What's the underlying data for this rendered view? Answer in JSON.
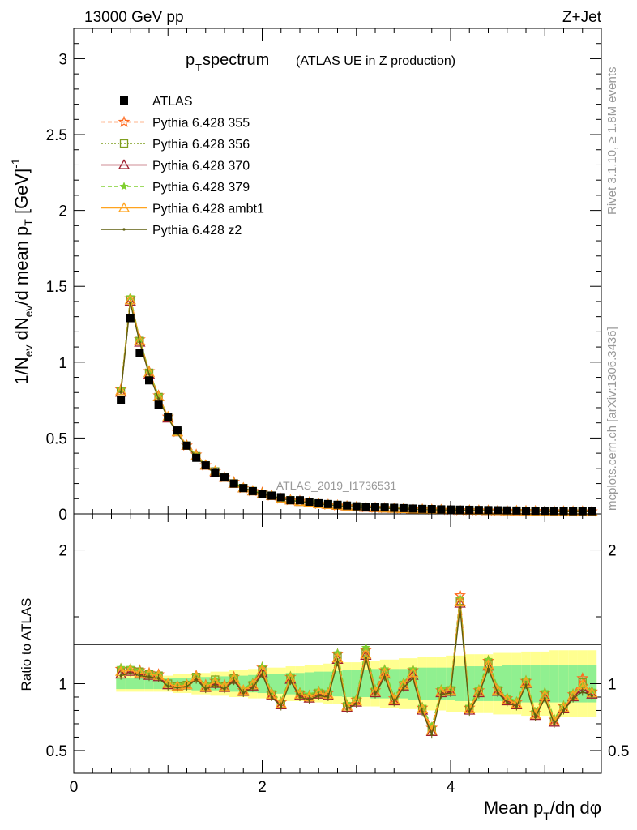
{
  "header": {
    "energy": "13000 GeV pp",
    "process": "Z+Jet",
    "title_main": "p",
    "title_sub": "T",
    "title_rest": " spectrum",
    "title_paren": "(ATLAS UE in Z production)",
    "analysis_tag": "ATLAS_2019_I1736531",
    "side_rivet": "Rivet 3.1.10, ≥ 1.8M events",
    "side_mcplots": "mcplots.cern.ch [arXiv:1306.3436]"
  },
  "colors": {
    "atlas": "#000000",
    "p355": "#ff6a1f",
    "p356": "#7f9f1f",
    "p370": "#9f1f2f",
    "p379": "#7fcf2f",
    "ambt1": "#ffa31f",
    "z2": "#5f5f0f",
    "band_green": "#90f090",
    "band_yellow": "#ffff90"
  },
  "chart_data": [
    {
      "type": "line",
      "panel": "main",
      "ylabel": "1/N_ev dN_ev/d mean p_T [GeV]^-1",
      "xlim": [
        0,
        5.6
      ],
      "ylim": [
        0,
        3.2
      ],
      "yticks": [
        "0",
        "0.5",
        "1",
        "1.5",
        "2",
        "2.5",
        "3"
      ],
      "x": [
        0.5,
        0.6,
        0.7,
        0.8,
        0.9,
        1.0,
        1.1,
        1.2,
        1.3,
        1.4,
        1.5,
        1.6,
        1.7,
        1.8,
        1.9,
        2.0,
        2.1,
        2.2,
        2.3,
        2.4,
        2.5,
        2.6,
        2.7,
        2.8,
        2.9,
        3.0,
        3.1,
        3.2,
        3.3,
        3.4,
        3.5,
        3.6,
        3.7,
        3.8,
        3.9,
        4.0,
        4.1,
        4.2,
        4.3,
        4.4,
        4.5,
        4.6,
        4.7,
        4.8,
        4.9,
        5.0,
        5.1,
        5.2,
        5.3,
        5.4,
        5.5
      ],
      "legend": [
        "ATLAS",
        "Pythia 6.428 355",
        "Pythia 6.428 356",
        "Pythia 6.428 370",
        "Pythia 6.428 379",
        "Pythia 6.428 ambt1",
        "Pythia 6.428 z2"
      ],
      "series": [
        {
          "name": "ATLAS",
          "values": [
            0.75,
            1.29,
            1.06,
            0.88,
            0.72,
            0.64,
            0.55,
            0.45,
            0.37,
            0.32,
            0.27,
            0.24,
            0.2,
            0.17,
            0.15,
            0.13,
            0.12,
            0.11,
            0.09,
            0.09,
            0.08,
            0.07,
            0.065,
            0.06,
            0.055,
            0.05,
            0.048,
            0.045,
            0.042,
            0.04,
            0.038,
            0.035,
            0.033,
            0.032,
            0.03,
            0.029,
            0.028,
            0.027,
            0.026,
            0.025,
            0.024,
            0.023,
            0.022,
            0.021,
            0.02,
            0.02,
            0.019,
            0.019,
            0.018,
            0.018,
            0.018
          ]
        },
        {
          "name": "Pythia 6.428 355",
          "values": [
            0.82,
            1.42,
            1.15,
            0.94,
            0.78,
            0.64,
            0.54,
            0.45,
            0.39,
            0.32,
            0.28,
            0.24,
            0.21,
            0.17,
            0.15,
            0.14,
            0.12,
            0.1,
            0.09,
            0.085,
            0.075,
            0.065,
            0.06,
            0.055,
            0.05,
            0.045,
            0.043,
            0.04,
            0.038,
            0.035,
            0.033,
            0.031,
            0.029,
            0.028,
            0.026,
            0.025,
            0.024,
            0.023,
            0.022,
            0.021,
            0.02,
            0.02,
            0.019,
            0.018,
            0.018,
            0.017,
            0.017,
            0.016,
            0.016,
            0.016,
            0.016
          ]
        },
        {
          "name": "Pythia 6.428 356",
          "values": [
            0.81,
            1.41,
            1.14,
            0.93,
            0.77,
            0.64,
            0.54,
            0.45,
            0.38,
            0.32,
            0.28,
            0.24,
            0.2,
            0.17,
            0.15,
            0.13,
            0.12,
            0.1,
            0.09,
            0.08,
            0.075,
            0.065,
            0.06,
            0.055,
            0.05,
            0.045,
            0.043,
            0.04,
            0.037,
            0.035,
            0.033,
            0.031,
            0.029,
            0.027,
            0.026,
            0.025,
            0.024,
            0.023,
            0.022,
            0.021,
            0.02,
            0.019,
            0.019,
            0.018,
            0.017,
            0.017,
            0.016,
            0.016,
            0.016,
            0.015,
            0.015
          ]
        },
        {
          "name": "Pythia 6.428 370",
          "values": [
            0.8,
            1.4,
            1.13,
            0.92,
            0.77,
            0.63,
            0.54,
            0.45,
            0.38,
            0.32,
            0.27,
            0.24,
            0.2,
            0.17,
            0.15,
            0.13,
            0.12,
            0.1,
            0.09,
            0.08,
            0.074,
            0.065,
            0.06,
            0.054,
            0.05,
            0.045,
            0.042,
            0.039,
            0.037,
            0.035,
            0.033,
            0.031,
            0.029,
            0.027,
            0.026,
            0.025,
            0.024,
            0.023,
            0.022,
            0.021,
            0.02,
            0.019,
            0.018,
            0.018,
            0.017,
            0.017,
            0.016,
            0.016,
            0.015,
            0.015,
            0.015
          ]
        },
        {
          "name": "Pythia 6.428 379",
          "values": [
            0.82,
            1.43,
            1.15,
            0.94,
            0.78,
            0.64,
            0.54,
            0.45,
            0.39,
            0.32,
            0.28,
            0.24,
            0.21,
            0.17,
            0.15,
            0.14,
            0.12,
            0.1,
            0.09,
            0.085,
            0.075,
            0.066,
            0.06,
            0.055,
            0.05,
            0.046,
            0.043,
            0.04,
            0.038,
            0.036,
            0.034,
            0.031,
            0.029,
            0.028,
            0.026,
            0.025,
            0.024,
            0.023,
            0.022,
            0.021,
            0.02,
            0.02,
            0.019,
            0.018,
            0.018,
            0.017,
            0.017,
            0.016,
            0.016,
            0.016,
            0.016
          ]
        },
        {
          "name": "Pythia 6.428 ambt1",
          "values": [
            0.81,
            1.41,
            1.14,
            0.93,
            0.77,
            0.64,
            0.54,
            0.45,
            0.38,
            0.32,
            0.28,
            0.24,
            0.2,
            0.17,
            0.15,
            0.13,
            0.12,
            0.1,
            0.09,
            0.08,
            0.075,
            0.065,
            0.06,
            0.055,
            0.05,
            0.045,
            0.043,
            0.04,
            0.037,
            0.035,
            0.033,
            0.031,
            0.029,
            0.027,
            0.026,
            0.025,
            0.024,
            0.023,
            0.022,
            0.021,
            0.02,
            0.019,
            0.019,
            0.018,
            0.017,
            0.017,
            0.016,
            0.016,
            0.016,
            0.015,
            0.015
          ]
        },
        {
          "name": "Pythia 6.428 z2",
          "values": [
            0.8,
            1.39,
            1.13,
            0.92,
            0.76,
            0.63,
            0.53,
            0.44,
            0.38,
            0.31,
            0.27,
            0.23,
            0.2,
            0.17,
            0.15,
            0.13,
            0.12,
            0.1,
            0.09,
            0.08,
            0.074,
            0.064,
            0.059,
            0.054,
            0.049,
            0.045,
            0.042,
            0.039,
            0.037,
            0.034,
            0.032,
            0.03,
            0.028,
            0.027,
            0.026,
            0.025,
            0.024,
            0.023,
            0.022,
            0.021,
            0.02,
            0.019,
            0.018,
            0.018,
            0.017,
            0.016,
            0.016,
            0.016,
            0.015,
            0.015,
            0.015
          ]
        }
      ]
    },
    {
      "type": "line",
      "panel": "ratio",
      "xlabel": "Mean p_T/dη dφ",
      "ylabel": "Ratio to ATLAS",
      "xlim": [
        0,
        5.6
      ],
      "ylim": [
        0.33,
        2.27
      ],
      "xticks": [
        "0",
        "2",
        "4"
      ],
      "yticks": [
        "0.5",
        "1",
        "2"
      ],
      "x": [
        0.5,
        0.6,
        0.7,
        0.8,
        0.9,
        1.0,
        1.1,
        1.2,
        1.3,
        1.4,
        1.5,
        1.6,
        1.7,
        1.8,
        1.9,
        2.0,
        2.1,
        2.2,
        2.3,
        2.4,
        2.5,
        2.6,
        2.7,
        2.8,
        2.9,
        3.0,
        3.1,
        3.2,
        3.3,
        3.4,
        3.5,
        3.6,
        3.7,
        3.8,
        3.9,
        4.0,
        4.1,
        4.2,
        4.3,
        4.4,
        4.5,
        4.6,
        4.7,
        4.8,
        4.9,
        5.0,
        5.1,
        5.2,
        5.3,
        5.4,
        5.5
      ],
      "band_green_halfwidth": [
        0.04,
        0.04,
        0.04,
        0.04,
        0.04,
        0.04,
        0.04,
        0.045,
        0.05,
        0.05,
        0.05,
        0.055,
        0.06,
        0.06,
        0.065,
        0.07,
        0.07,
        0.075,
        0.08,
        0.08,
        0.085,
        0.09,
        0.09,
        0.095,
        0.1,
        0.1,
        0.1,
        0.11,
        0.11,
        0.11,
        0.11,
        0.12,
        0.12,
        0.12,
        0.12,
        0.12,
        0.13,
        0.13,
        0.13,
        0.13,
        0.13,
        0.14,
        0.14,
        0.14,
        0.14,
        0.14,
        0.14,
        0.14,
        0.14,
        0.14,
        0.14
      ],
      "band_yellow_halfwidth": [
        0.06,
        0.06,
        0.06,
        0.06,
        0.06,
        0.06,
        0.07,
        0.07,
        0.08,
        0.08,
        0.09,
        0.09,
        0.1,
        0.1,
        0.11,
        0.11,
        0.12,
        0.12,
        0.13,
        0.13,
        0.14,
        0.14,
        0.15,
        0.15,
        0.16,
        0.16,
        0.17,
        0.17,
        0.18,
        0.18,
        0.19,
        0.19,
        0.2,
        0.2,
        0.2,
        0.21,
        0.21,
        0.22,
        0.22,
        0.22,
        0.23,
        0.23,
        0.23,
        0.24,
        0.24,
        0.24,
        0.25,
        0.25,
        0.25,
        0.25,
        0.25
      ],
      "series": [
        {
          "name": "Pythia 6.428 355",
          "values": [
            1.11,
            1.11,
            1.1,
            1.08,
            1.07,
            1.0,
            0.98,
            0.99,
            1.06,
            0.99,
            1.02,
            0.99,
            1.05,
            0.95,
            1.0,
            1.12,
            0.93,
            0.86,
            1.05,
            0.93,
            0.91,
            0.94,
            0.93,
            1.22,
            0.84,
            0.88,
            1.25,
            0.95,
            1.1,
            0.89,
            1.0,
            1.1,
            0.82,
            0.67,
            0.95,
            0.96,
            1.66,
            0.82,
            0.95,
            1.17,
            0.96,
            0.89,
            0.86,
            1.02,
            0.78,
            0.93,
            0.73,
            0.83,
            0.92,
            1.04,
            0.94
          ]
        },
        {
          "name": "Pythia 6.428 356",
          "values": [
            1.09,
            1.1,
            1.09,
            1.07,
            1.06,
            1.0,
            0.98,
            0.99,
            1.05,
            0.98,
            1.03,
            0.98,
            1.04,
            0.94,
            0.99,
            1.1,
            0.92,
            0.85,
            1.04,
            0.92,
            0.9,
            0.93,
            0.92,
            1.2,
            0.83,
            0.87,
            1.23,
            0.94,
            1.08,
            0.88,
            0.99,
            1.08,
            0.81,
            0.65,
            0.94,
            0.95,
            1.62,
            0.81,
            0.94,
            1.15,
            0.95,
            0.88,
            0.85,
            1.01,
            0.77,
            0.91,
            0.72,
            0.82,
            0.91,
            1.01,
            0.93
          ]
        },
        {
          "name": "Pythia 6.428 370",
          "values": [
            1.07,
            1.09,
            1.07,
            1.06,
            1.05,
            0.99,
            0.98,
            0.99,
            1.04,
            0.97,
            1.0,
            0.97,
            1.03,
            0.94,
            0.98,
            1.08,
            0.91,
            0.84,
            1.03,
            0.91,
            0.89,
            0.92,
            0.91,
            1.18,
            0.82,
            0.86,
            1.21,
            0.93,
            1.07,
            0.87,
            0.98,
            1.06,
            0.8,
            0.64,
            0.93,
            0.94,
            1.6,
            0.8,
            0.93,
            1.13,
            0.94,
            0.87,
            0.84,
            1.0,
            0.76,
            0.9,
            0.71,
            0.81,
            0.9,
            0.96,
            0.92
          ]
        },
        {
          "name": "Pythia 6.428 379",
          "values": [
            1.12,
            1.12,
            1.1,
            1.08,
            1.07,
            1.0,
            0.99,
            1.0,
            1.06,
            0.99,
            1.03,
            0.99,
            1.05,
            0.96,
            1.01,
            1.13,
            0.94,
            0.87,
            1.06,
            0.94,
            0.92,
            0.95,
            0.94,
            1.23,
            0.85,
            0.89,
            1.27,
            0.96,
            1.11,
            0.9,
            1.01,
            1.11,
            0.83,
            0.68,
            0.96,
            0.97,
            1.64,
            0.83,
            0.96,
            1.18,
            0.97,
            0.9,
            0.87,
            1.03,
            0.79,
            0.94,
            0.74,
            0.84,
            0.93,
            0.98,
            0.95
          ]
        },
        {
          "name": "Pythia 6.428 ambt1",
          "values": [
            1.09,
            1.1,
            1.08,
            1.07,
            1.06,
            1.0,
            0.98,
            0.99,
            1.05,
            0.98,
            1.01,
            0.98,
            1.04,
            0.95,
            0.99,
            1.1,
            0.92,
            0.85,
            1.04,
            0.92,
            0.9,
            0.93,
            0.92,
            1.19,
            0.83,
            0.87,
            1.22,
            0.94,
            1.08,
            0.88,
            0.99,
            1.08,
            0.81,
            0.65,
            0.94,
            0.95,
            1.61,
            0.81,
            0.94,
            1.14,
            0.95,
            0.88,
            0.85,
            1.01,
            0.77,
            0.91,
            0.72,
            0.82,
            0.91,
            0.99,
            0.93
          ]
        },
        {
          "name": "Pythia 6.428 z2",
          "values": [
            1.06,
            1.08,
            1.06,
            1.05,
            1.04,
            0.98,
            0.97,
            0.98,
            1.03,
            0.96,
            0.99,
            0.96,
            1.02,
            0.93,
            0.97,
            1.07,
            0.9,
            0.83,
            1.02,
            0.9,
            0.88,
            0.91,
            0.9,
            1.16,
            0.81,
            0.85,
            1.19,
            0.92,
            1.05,
            0.86,
            0.97,
            1.04,
            0.79,
            0.62,
            0.92,
            0.93,
            1.57,
            0.79,
            0.92,
            1.11,
            0.93,
            0.86,
            0.83,
            0.99,
            0.75,
            0.89,
            0.7,
            0.8,
            0.89,
            0.94,
            0.91
          ]
        }
      ]
    }
  ]
}
